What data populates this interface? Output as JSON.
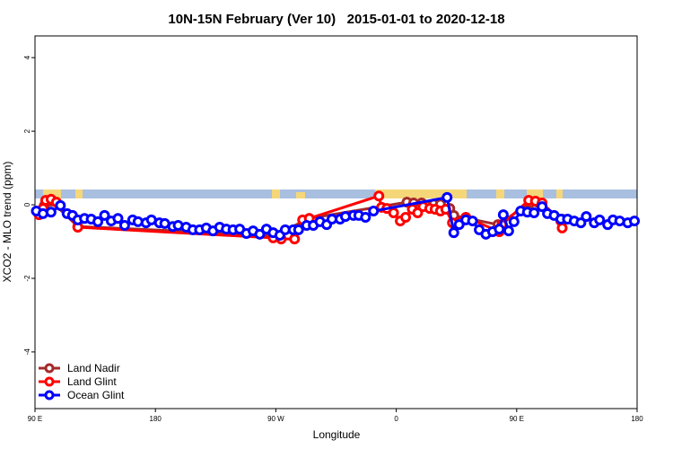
{
  "chart_data": {
    "type": "line",
    "title": "10N-15N February (Ver 10)   2015-01-01 to 2020-12-18",
    "x_label": "Longitude",
    "y_label": "XCO2 - MLO trend (ppm)",
    "xlim": [
      90,
      540
    ],
    "xticks": [
      {
        "value": 90,
        "label": "90 E"
      },
      180,
      {
        "value": 270,
        "label": "90 W"
      },
      {
        "value": 360,
        "label": "0"
      },
      {
        "value": 450,
        "label": "90 E"
      },
      {
        "value": 540,
        "label": "180"
      }
    ],
    "ylim": [
      -5.54,
      4.59
    ],
    "yticks": [
      -4,
      -2,
      0,
      2,
      4
    ],
    "legend": "bottom-left",
    "series": [
      {
        "name": "Land Nadir",
        "color": "#a52a2a",
        "x": [
          97,
          102,
          122,
          269,
          295,
          368,
          373,
          379,
          383,
          388,
          393,
          400,
          403,
          436,
          460,
          484
        ],
        "values": [
          -0.02,
          0.1,
          -0.59,
          -0.83,
          -0.37,
          0.07,
          0.05,
          0.05,
          -0.02,
          0.02,
          0.02,
          -0.1,
          -0.29,
          -0.54,
          0.05,
          -0.39
        ]
      },
      {
        "name": "Land Glint",
        "color": "#ff0000",
        "x": [
          93,
          96,
          98,
          102,
          106,
          122,
          268,
          274,
          284,
          290,
          295,
          347,
          349,
          353,
          358,
          363,
          367,
          372,
          376,
          380,
          385,
          389,
          393,
          397,
          402,
          408,
          412,
          437,
          439,
          459,
          464,
          469,
          483,
          484
        ],
        "values": [
          -0.27,
          -0.1,
          0.12,
          0.15,
          0.07,
          -0.61,
          -0.9,
          -0.93,
          -0.93,
          -0.41,
          -0.37,
          0.24,
          -0.07,
          -0.1,
          -0.22,
          -0.44,
          -0.34,
          -0.12,
          -0.22,
          -0.05,
          -0.1,
          -0.12,
          -0.17,
          -0.12,
          -0.49,
          -0.46,
          -0.34,
          -0.73,
          -0.54,
          0.12,
          0.1,
          0.05,
          -0.44,
          -0.63
        ]
      },
      {
        "name": "Ocean Glint",
        "color": "#0000ff",
        "x": [
          91,
          96,
          102,
          109,
          114,
          118,
          122,
          127,
          132,
          137,
          142,
          147,
          152,
          157,
          163,
          167,
          173,
          177,
          183,
          187,
          193,
          197,
          203,
          208,
          213,
          218,
          223,
          228,
          233,
          238,
          243,
          248,
          253,
          258,
          263,
          268,
          273,
          277,
          283,
          287,
          293,
          298,
          303,
          308,
          312,
          318,
          322,
          328,
          332,
          337,
          343,
          398,
          403,
          407,
          412,
          417,
          422,
          427,
          432,
          437,
          440,
          444,
          448,
          453,
          458,
          463,
          469,
          473,
          478,
          483,
          488,
          493,
          498,
          502,
          508,
          512,
          518,
          522,
          527,
          533,
          538
        ],
        "values": [
          -0.17,
          -0.24,
          -0.2,
          -0.02,
          -0.24,
          -0.29,
          -0.41,
          -0.37,
          -0.39,
          -0.46,
          -0.29,
          -0.44,
          -0.37,
          -0.56,
          -0.41,
          -0.46,
          -0.49,
          -0.41,
          -0.49,
          -0.51,
          -0.59,
          -0.56,
          -0.61,
          -0.68,
          -0.68,
          -0.63,
          -0.71,
          -0.61,
          -0.66,
          -0.68,
          -0.66,
          -0.78,
          -0.71,
          -0.8,
          -0.66,
          -0.76,
          -0.83,
          -0.68,
          -0.68,
          -0.68,
          -0.56,
          -0.56,
          -0.46,
          -0.54,
          -0.39,
          -0.39,
          -0.32,
          -0.29,
          -0.29,
          -0.34,
          -0.17,
          0.2,
          -0.76,
          -0.54,
          -0.41,
          -0.44,
          -0.68,
          -0.8,
          -0.73,
          -0.66,
          -0.27,
          -0.71,
          -0.46,
          -0.17,
          -0.2,
          -0.22,
          -0.05,
          -0.24,
          -0.29,
          -0.39,
          -0.39,
          -0.44,
          -0.49,
          -0.32,
          -0.49,
          -0.41,
          -0.54,
          -0.41,
          -0.44,
          -0.49,
          -0.44
        ]
      }
    ]
  }
}
